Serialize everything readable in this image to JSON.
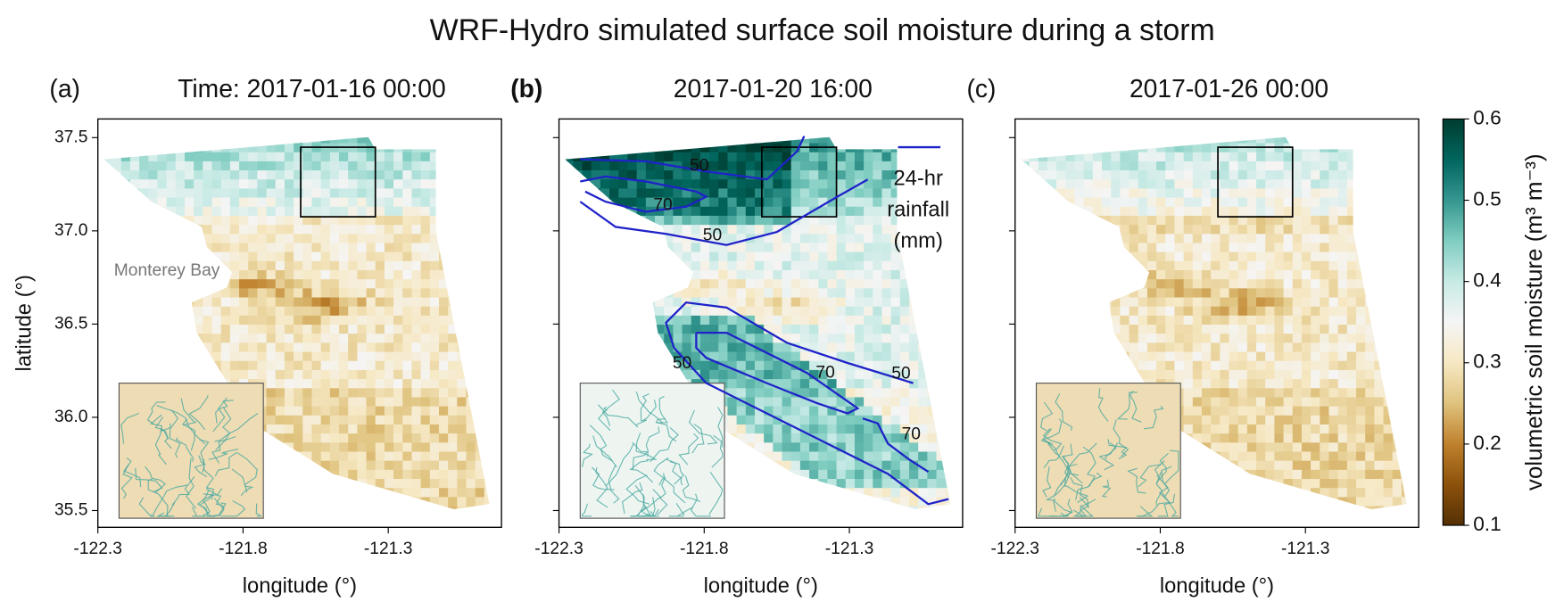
{
  "title": "WRF-Hydro simulated surface soil moisture during a storm",
  "chart_data": [
    {
      "type": "map",
      "panel_label": "(a)",
      "title": "Time: 2017-01-16 00:00",
      "xlabel": "longitude (°)",
      "ylabel": "latitude (°)",
      "xlim": [
        -122.3,
        -120.91
      ],
      "xticks": [
        -122.3,
        -121.8,
        -121.3
      ],
      "ylim": [
        35.41,
        37.6
      ],
      "yticks": [
        35.5,
        {
          "value": 36,
          "label": "36.0"
        },
        36.5,
        {
          "value": 37,
          "label": "37.0"
        },
        37.5
      ],
      "ytick_labels": true,
      "annotations": [
        "Monterey Bay"
      ]
    },
    {
      "type": "map",
      "panel_label": "(b)",
      "title": "2017-01-20 16:00",
      "xlabel": "longitude (°)",
      "xlim": [
        -122.3,
        -120.91
      ],
      "xticks": [
        -122.3,
        -121.8,
        -121.3
      ],
      "ylim": [
        35.41,
        37.6
      ],
      "yticks": [
        35.5,
        36,
        36.5,
        37,
        37.5
      ],
      "ytick_labels": false,
      "contour_color": "#1f22c8",
      "contour_labels": [
        50,
        70,
        50,
        50,
        70,
        50,
        70
      ],
      "contour_legend": [
        "24-hr",
        "rainfall",
        "(mm)"
      ]
    },
    {
      "type": "map",
      "panel_label": "(c)",
      "title": "2017-01-26 00:00",
      "xlabel": "longitude (°)",
      "xlim": [
        -122.3,
        -120.91
      ],
      "xticks": [
        -122.3,
        -121.8,
        -121.3
      ],
      "ylim": [
        35.41,
        37.6
      ],
      "yticks": [
        35.5,
        36,
        36.5,
        37,
        37.5
      ],
      "ytick_labels": false
    }
  ],
  "colorbar": {
    "label": "volumetric soil moisture (m³ m⁻³)",
    "lim": [
      0.1,
      0.6
    ],
    "ticks": [
      0.1,
      0.2,
      0.3,
      0.4,
      0.5,
      0.6
    ],
    "colors": [
      "#543005",
      "#8c510a",
      "#bf812d",
      "#dfc27d",
      "#f6e8c3",
      "#f5f5f5",
      "#c7eae5",
      "#80cdc1",
      "#35978f",
      "#01665e",
      "#003c30"
    ]
  }
}
